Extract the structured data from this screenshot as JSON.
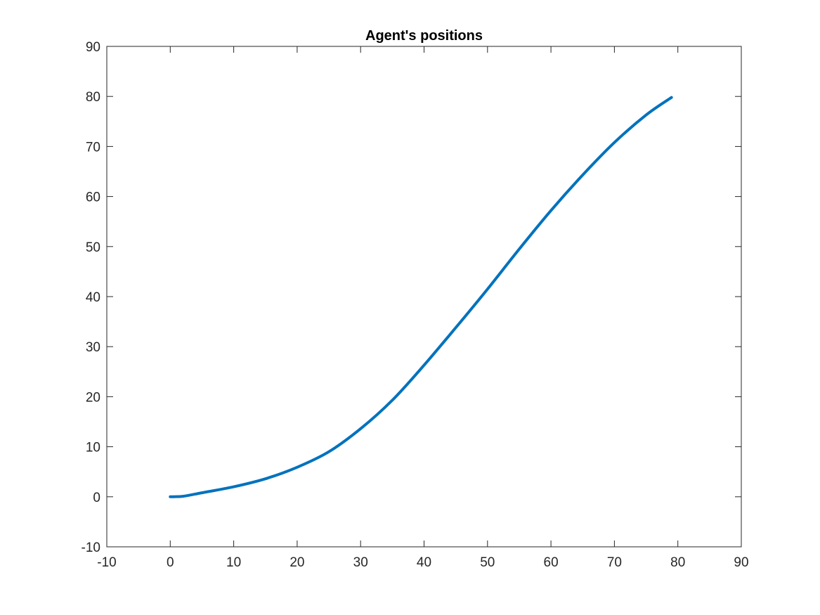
{
  "chart_data": {
    "type": "line",
    "title": "Agent's positions",
    "xlabel": "",
    "ylabel": "",
    "xlim": [
      -10,
      90
    ],
    "ylim": [
      -10,
      90
    ],
    "xticks": [
      -10,
      0,
      10,
      20,
      30,
      40,
      50,
      60,
      70,
      80,
      90
    ],
    "yticks": [
      -10,
      0,
      10,
      20,
      30,
      40,
      50,
      60,
      70,
      80,
      90
    ],
    "xtick_labels": [
      "-10",
      "0",
      "10",
      "20",
      "30",
      "40",
      "50",
      "60",
      "70",
      "80",
      "90"
    ],
    "ytick_labels": [
      "-10",
      "0",
      "10",
      "20",
      "30",
      "40",
      "50",
      "60",
      "70",
      "80",
      "90"
    ],
    "grid": false,
    "box": true,
    "series": [
      {
        "color": "#0072BD",
        "x": [
          0,
          2,
          5,
          10,
          15,
          20,
          25,
          30,
          35,
          40,
          45,
          50,
          55,
          60,
          65,
          70,
          75,
          79
        ],
        "y": [
          0,
          0.1,
          0.8,
          2.0,
          3.6,
          5.9,
          9.0,
          13.6,
          19.3,
          26.3,
          33.8,
          41.5,
          49.5,
          57.2,
          64.3,
          70.8,
          76.3,
          79.8
        ]
      }
    ]
  }
}
